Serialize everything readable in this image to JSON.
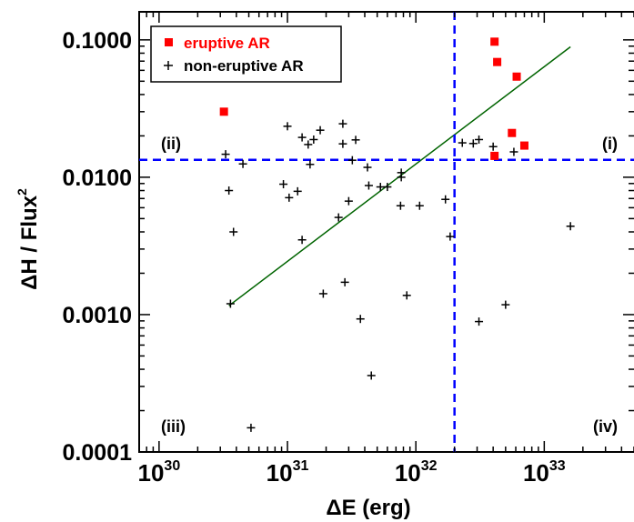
{
  "chart_data": {
    "type": "scatter",
    "xscale": "log",
    "yscale": "log",
    "xlim": [
      7e+29,
      5e+33
    ],
    "ylim": [
      0.0001,
      0.16
    ],
    "xlabel": {
      "delta": "Δ",
      "text": "E (erg)"
    },
    "ylabel": {
      "delta": "Δ",
      "text": "H / Flux",
      "sup": "2"
    },
    "x_ticks": [
      {
        "value": 1e+30,
        "base": "10",
        "exp": "30"
      },
      {
        "value": 1e+31,
        "base": "10",
        "exp": "31"
      },
      {
        "value": 1e+32,
        "base": "10",
        "exp": "32"
      },
      {
        "value": 1e+33,
        "base": "10",
        "exp": "33"
      }
    ],
    "y_ticks": [
      {
        "value": 0.0001,
        "label": "0.0001"
      },
      {
        "value": 0.001,
        "label": "0.0010"
      },
      {
        "value": 0.01,
        "label": "0.0100"
      },
      {
        "value": 0.1,
        "label": "0.1000"
      }
    ],
    "series": [
      {
        "name": "eruptive AR",
        "marker": "square",
        "color": "#ff0000",
        "points": [
          [
            3.2e+30,
            0.03
          ],
          [
            4.1e+32,
            0.097
          ],
          [
            4.3e+32,
            0.069
          ],
          [
            6.1e+32,
            0.054
          ],
          [
            5.6e+32,
            0.021
          ],
          [
            7e+32,
            0.017
          ],
          [
            4.1e+32,
            0.0143
          ]
        ]
      },
      {
        "name": "non-eruptive AR",
        "marker": "plus",
        "color": "#000000",
        "points": [
          [
            3.3e+30,
            0.0147
          ],
          [
            3.5e+30,
            0.008
          ],
          [
            3.8e+30,
            0.004
          ],
          [
            4.5e+30,
            0.0125
          ],
          [
            3.6e+30,
            0.0012
          ],
          [
            5.2e+30,
            0.00015
          ],
          [
            9.3e+30,
            0.0089
          ],
          [
            1e+31,
            0.0235
          ],
          [
            1.03e+31,
            0.0071
          ],
          [
            1.2e+31,
            0.0079
          ],
          [
            1.3e+31,
            0.0195
          ],
          [
            1.3e+31,
            0.0035
          ],
          [
            1.45e+31,
            0.0173
          ],
          [
            1.5e+31,
            0.0124
          ],
          [
            1.6e+31,
            0.0188
          ],
          [
            1.8e+31,
            0.022
          ],
          [
            1.9e+31,
            0.00142
          ],
          [
            2.5e+31,
            0.0051
          ],
          [
            2.7e+31,
            0.0245
          ],
          [
            2.7e+31,
            0.0175
          ],
          [
            2.8e+31,
            0.00172
          ],
          [
            3e+31,
            0.0067
          ],
          [
            3.2e+31,
            0.0133
          ],
          [
            3.4e+31,
            0.0187
          ],
          [
            3.7e+31,
            0.00093
          ],
          [
            4.2e+31,
            0.0118
          ],
          [
            4.3e+31,
            0.0087
          ],
          [
            4.5e+31,
            0.00036
          ],
          [
            5.3e+31,
            0.0085
          ],
          [
            6e+31,
            0.0085
          ],
          [
            7.6e+31,
            0.0062
          ],
          [
            7.7e+31,
            0.0108
          ],
          [
            7.7e+31,
            0.01
          ],
          [
            8.5e+31,
            0.00138
          ],
          [
            1.07e+32,
            0.0062
          ],
          [
            1.7e+32,
            0.0069
          ],
          [
            1.85e+32,
            0.0037
          ],
          [
            2.3e+32,
            0.0178
          ],
          [
            2.8e+32,
            0.0176
          ],
          [
            3.1e+32,
            0.0188
          ],
          [
            3.1e+32,
            0.00089
          ],
          [
            4e+32,
            0.0167
          ],
          [
            5e+32,
            0.00118
          ],
          [
            5.8e+32,
            0.0153
          ],
          [
            1.6e+33,
            0.0044
          ]
        ]
      }
    ],
    "fit_line": {
      "color": "#006400",
      "points": [
        [
          3.5e+30,
          0.00116
        ],
        [
          1.6e+33,
          0.089
        ]
      ]
    },
    "threshold_lines": {
      "color": "#0000ff",
      "vertical_x": 2e+32,
      "horizontal_y": 0.0134
    },
    "quadrant_labels": [
      {
        "text": "(i)",
        "position": "upper-right"
      },
      {
        "text": "(ii)",
        "position": "upper-left"
      },
      {
        "text": "(iii)",
        "position": "lower-left"
      },
      {
        "text": "(iv)",
        "position": "lower-right"
      }
    ],
    "legend": {
      "placement": "top-left"
    }
  }
}
